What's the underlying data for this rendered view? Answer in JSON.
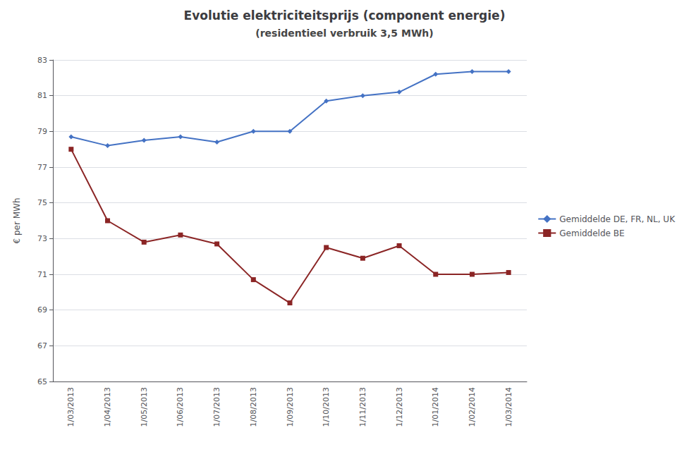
{
  "chart_data": {
    "type": "line",
    "title": "Evolutie elektriciteitsprijs (component energie)",
    "subtitle": "(residentieel verbruik 3,5 MWh)",
    "y_label": "€ per MWh",
    "categories": [
      "1/03/2013",
      "1/04/2013",
      "1/05/2013",
      "1/06/2013",
      "1/07/2013",
      "1/08/2013",
      "1/09/2013",
      "1/10/2013",
      "1/11/2013",
      "1/12/2013",
      "1/01/2014",
      "1/02/2014",
      "1/03/2014"
    ],
    "series": [
      {
        "name": "Gemiddelde DE, FR, NL, UK",
        "color": "#4472C4",
        "marker": "diamond",
        "values": [
          78.7,
          78.2,
          78.5,
          78.7,
          78.4,
          79.0,
          79.0,
          80.7,
          81.0,
          81.2,
          82.2,
          82.35,
          82.35
        ]
      },
      {
        "name": "Gemiddelde BE",
        "color": "#8B2525",
        "marker": "square",
        "values": [
          78.0,
          74.0,
          72.8,
          73.2,
          72.7,
          70.7,
          69.4,
          72.5,
          71.9,
          72.6,
          71.0,
          71.0,
          71.1
        ]
      }
    ],
    "ylim": [
      65,
      83
    ],
    "yticks": [
      65,
      67,
      69,
      71,
      73,
      75,
      77,
      79,
      81,
      83
    ],
    "grid": true,
    "legend": "right"
  }
}
